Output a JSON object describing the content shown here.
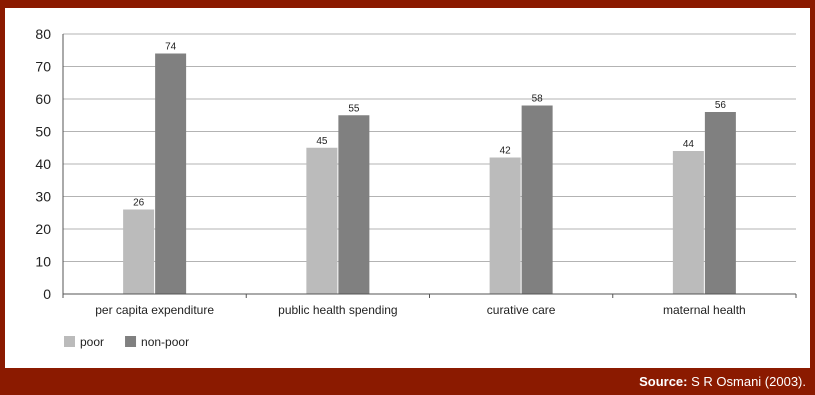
{
  "chart_data": {
    "type": "bar",
    "categories": [
      "per capita expenditure",
      "public health spending",
      "curative care",
      "maternal health"
    ],
    "series": [
      {
        "name": "poor",
        "values": [
          26,
          45,
          42,
          44
        ],
        "color": "#bbbbbb"
      },
      {
        "name": "non-poor",
        "values": [
          74,
          55,
          58,
          56
        ],
        "color": "#808080"
      }
    ],
    "ylim": [
      0,
      80
    ],
    "yticks": [
      0,
      10,
      20,
      30,
      40,
      50,
      60,
      70,
      80
    ],
    "grid": true,
    "legend_position": "bottom-left"
  },
  "footer": {
    "source_label": "Source:",
    "source_text": " S R Osmani (2003)."
  },
  "colors": {
    "frame": "#8b1a00",
    "grid": "#9a9a9a",
    "axis": "#555555"
  }
}
